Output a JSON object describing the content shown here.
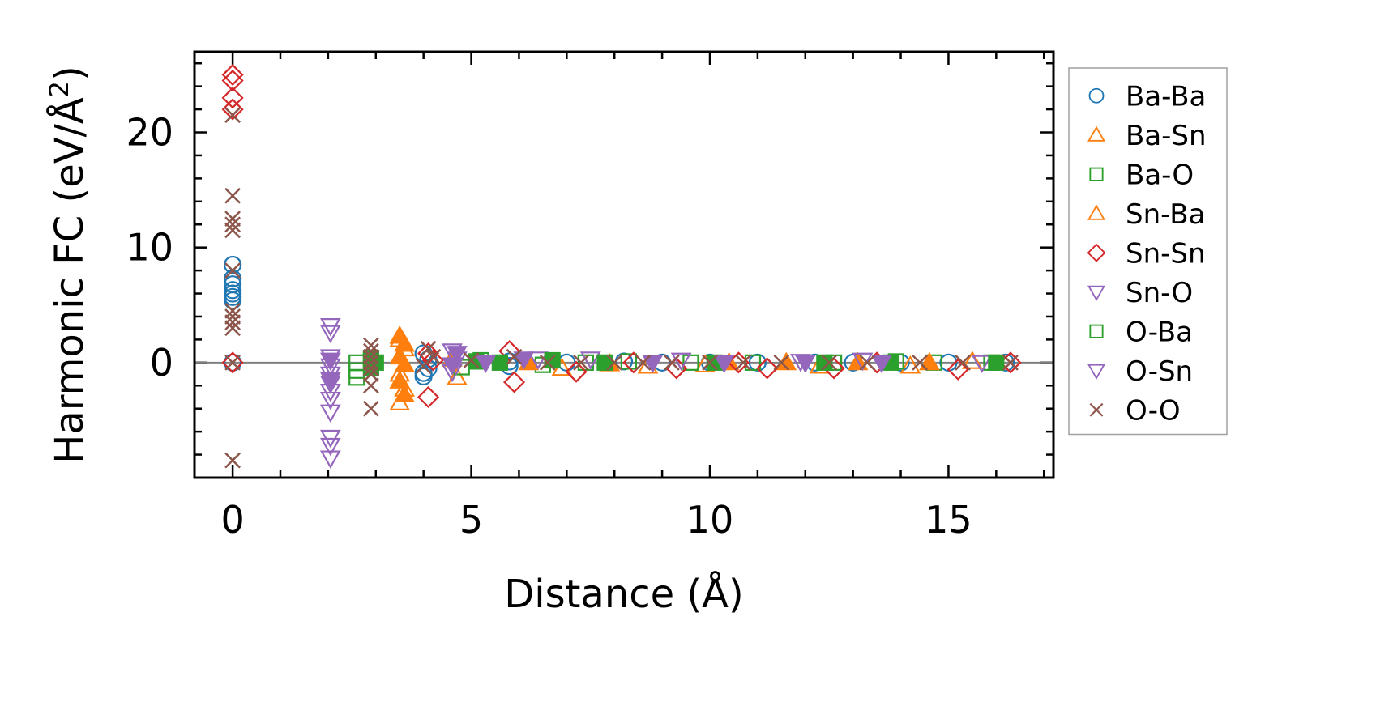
{
  "chart_data": {
    "type": "scatter",
    "xlabel": "Distance (Å)",
    "ylabel_prefix": "Harmonic FC (eV/Å",
    "ylabel_sup": "2",
    "ylabel_suffix": ")",
    "xlim": [
      -0.8,
      17.2
    ],
    "ylim": [
      -10.0,
      27.0
    ],
    "xticks": [
      0,
      5,
      10,
      15
    ],
    "yticks": [
      0,
      10,
      20
    ],
    "x_minor_step": 1,
    "y_minor_step": 2,
    "reference_line_y": 0,
    "grid": false,
    "legend_position": "outside-right",
    "series": [
      {
        "name": "Ba-Ba",
        "marker": "circle",
        "filled": false,
        "color": "#1f77b4",
        "points": [
          [
            0,
            8.5
          ],
          [
            0,
            7.3
          ],
          [
            0,
            6.8
          ],
          [
            0,
            6.3
          ],
          [
            0,
            6.0
          ],
          [
            0,
            5.7
          ],
          [
            0,
            5.4
          ],
          [
            0,
            0
          ],
          [
            4.0,
            -1.2
          ],
          [
            4.0,
            -0.9
          ],
          [
            4.0,
            0.8
          ],
          [
            4.1,
            -0.5
          ],
          [
            4.1,
            0.3
          ],
          [
            5.8,
            0.1
          ],
          [
            5.8,
            -0.3
          ],
          [
            7.0,
            0.0
          ],
          [
            8.2,
            0.1
          ],
          [
            9.0,
            0.0
          ],
          [
            10.0,
            0.0
          ],
          [
            11.0,
            0.0
          ],
          [
            12.2,
            0.0
          ],
          [
            13.0,
            0.0
          ],
          [
            14.0,
            0.0
          ],
          [
            15.0,
            0.0
          ],
          [
            16.2,
            0.0
          ]
        ]
      },
      {
        "name": "Ba-Sn",
        "marker": "triangle-up",
        "filled": false,
        "color": "#ff7f0e",
        "points": [
          [
            3.5,
            2.0
          ],
          [
            3.6,
            1.2
          ],
          [
            3.5,
            -1.0
          ],
          [
            3.6,
            -2.3
          ],
          [
            3.5,
            -3.5
          ],
          [
            4.7,
            -1.3
          ],
          [
            6.9,
            -0.5
          ],
          [
            8.7,
            -0.3
          ],
          [
            9.9,
            -0.2
          ],
          [
            12.3,
            -0.3
          ],
          [
            14.2,
            -0.3
          ],
          [
            15.5,
            0.1
          ]
        ]
      },
      {
        "name": "Ba-O",
        "marker": "square",
        "filled": false,
        "color": "#2ca02c",
        "points": [
          [
            2.6,
            0.0
          ],
          [
            2.6,
            -0.7
          ],
          [
            2.6,
            -1.3
          ],
          [
            2.9,
            0.2
          ],
          [
            4.8,
            -0.4
          ],
          [
            5.2,
            0.2
          ],
          [
            6.5,
            -0.2
          ],
          [
            7.4,
            0.0
          ],
          [
            8.3,
            0.1
          ],
          [
            9.6,
            0.0
          ],
          [
            10.9,
            0.0
          ],
          [
            12.6,
            0.0
          ],
          [
            13.9,
            0.1
          ],
          [
            14.7,
            0.0
          ],
          [
            15.9,
            0.0
          ]
        ]
      },
      {
        "name": "Sn-Ba",
        "marker": "triangle-up",
        "filled": true,
        "color": "#ff7f0e",
        "points": [
          [
            3.5,
            2.3
          ],
          [
            3.6,
            1.6
          ],
          [
            3.5,
            0.5
          ],
          [
            3.6,
            -0.2
          ],
          [
            3.5,
            -1.6
          ],
          [
            3.6,
            -2.8
          ],
          [
            4.6,
            0.3
          ],
          [
            6.2,
            0.0
          ],
          [
            7.9,
            -0.1
          ],
          [
            10.4,
            0.0
          ],
          [
            11.6,
            0.0
          ],
          [
            13.1,
            0.0
          ],
          [
            14.6,
            0.0
          ]
        ]
      },
      {
        "name": "Sn-Sn",
        "marker": "diamond",
        "filled": false,
        "color": "#d62728",
        "points": [
          [
            0,
            25.0
          ],
          [
            0,
            24.5
          ],
          [
            0,
            23.0
          ],
          [
            0,
            22.0
          ],
          [
            0,
            0
          ],
          [
            4.1,
            -3.0
          ],
          [
            4.1,
            0.8
          ],
          [
            4.2,
            0.2
          ],
          [
            5.8,
            1.0
          ],
          [
            5.9,
            -1.7
          ],
          [
            7.2,
            -0.8
          ],
          [
            8.4,
            0.0
          ],
          [
            9.3,
            -0.5
          ],
          [
            10.6,
            0.0
          ],
          [
            11.2,
            -0.5
          ],
          [
            12.6,
            -0.5
          ],
          [
            13.5,
            0.0
          ],
          [
            15.2,
            -0.6
          ],
          [
            16.3,
            0.0
          ]
        ]
      },
      {
        "name": "Sn-O",
        "marker": "triangle-down",
        "filled": false,
        "color": "#9467bd",
        "points": [
          [
            2.05,
            3.2
          ],
          [
            2.05,
            2.6
          ],
          [
            2.05,
            0.5
          ],
          [
            2.05,
            -0.3
          ],
          [
            2.05,
            -1.0
          ],
          [
            2.05,
            -1.8
          ],
          [
            2.05,
            -2.5
          ],
          [
            2.05,
            -3.2
          ],
          [
            2.05,
            -4.3
          ],
          [
            2.05,
            -6.5
          ],
          [
            2.05,
            -7.2
          ],
          [
            2.05,
            -8.3
          ],
          [
            4.6,
            1.0
          ],
          [
            4.7,
            0.3
          ],
          [
            4.6,
            -0.8
          ],
          [
            6.4,
            0.3
          ],
          [
            7.5,
            0.3
          ],
          [
            9.4,
            0.2
          ],
          [
            11.9,
            0.1
          ],
          [
            13.2,
            0.2
          ],
          [
            15.7,
            0.0
          ]
        ]
      },
      {
        "name": "O-Ba",
        "marker": "square",
        "filled": true,
        "color": "#2ca02c",
        "points": [
          [
            2.9,
            0.4
          ],
          [
            2.9,
            -0.5
          ],
          [
            3.0,
            0.0
          ],
          [
            5.1,
            0.1
          ],
          [
            5.6,
            0.0
          ],
          [
            6.7,
            0.2
          ],
          [
            7.8,
            0.0
          ],
          [
            10.1,
            0.0
          ],
          [
            12.4,
            0.0
          ],
          [
            13.8,
            0.0
          ],
          [
            16.0,
            0.0
          ]
        ]
      },
      {
        "name": "O-Sn",
        "marker": "triangle-down",
        "filled": true,
        "color": "#9467bd",
        "points": [
          [
            2.05,
            0.2
          ],
          [
            2.05,
            -1.5
          ],
          [
            4.6,
            -0.2
          ],
          [
            4.7,
            0.8
          ],
          [
            5.3,
            0.0
          ],
          [
            6.1,
            0.3
          ],
          [
            8.8,
            0.0
          ],
          [
            10.3,
            0.0
          ],
          [
            12.0,
            0.0
          ],
          [
            13.6,
            0.0
          ]
        ]
      },
      {
        "name": "O-O",
        "marker": "x",
        "filled": false,
        "color": "#8c564b",
        "points": [
          [
            0,
            21.5
          ],
          [
            0,
            14.5
          ],
          [
            0,
            12.5
          ],
          [
            0,
            12.0
          ],
          [
            0,
            11.5
          ],
          [
            0,
            8.0
          ],
          [
            0,
            4.5
          ],
          [
            0,
            4.0
          ],
          [
            0,
            3.5
          ],
          [
            0,
            3.0
          ],
          [
            0,
            0
          ],
          [
            0,
            -8.5
          ],
          [
            2.9,
            1.5
          ],
          [
            2.9,
            1.0
          ],
          [
            2.9,
            0.5
          ],
          [
            2.9,
            0.0
          ],
          [
            2.9,
            -0.5
          ],
          [
            2.9,
            -1.0
          ],
          [
            2.9,
            -2.0
          ],
          [
            2.9,
            -4.0
          ],
          [
            4.1,
            1.2
          ],
          [
            4.2,
            0.5
          ],
          [
            4.0,
            -0.3
          ],
          [
            5.0,
            0.2
          ],
          [
            5.9,
            0.5
          ],
          [
            6.6,
            0.0
          ],
          [
            7.3,
            0.0
          ],
          [
            8.0,
            0.0
          ],
          [
            8.6,
            0.0
          ],
          [
            9.2,
            0.0
          ],
          [
            10.0,
            0.0
          ],
          [
            10.7,
            0.0
          ],
          [
            11.5,
            0.0
          ],
          [
            12.5,
            0.0
          ],
          [
            13.3,
            0.0
          ],
          [
            14.4,
            0.0
          ],
          [
            15.3,
            0.0
          ],
          [
            16.3,
            0.0
          ]
        ]
      }
    ]
  }
}
